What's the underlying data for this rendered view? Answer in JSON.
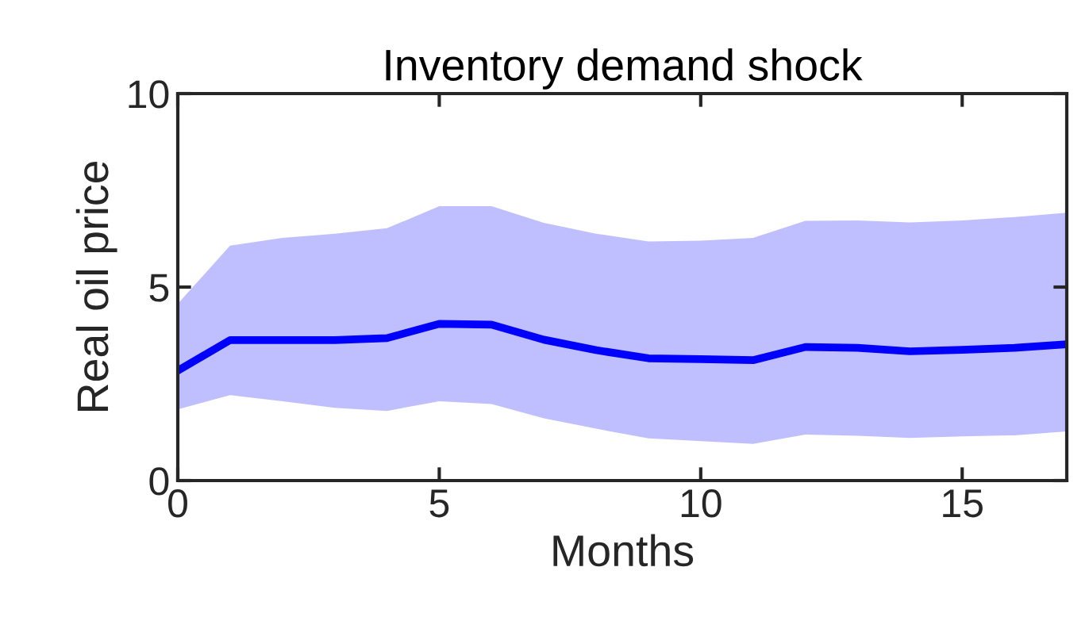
{
  "chart_data": {
    "type": "line",
    "title": "Inventory demand shock",
    "xlabel": "Months",
    "ylabel": "Real oil price",
    "x": [
      0,
      1,
      2,
      3,
      4,
      5,
      6,
      7,
      8,
      9,
      10,
      11,
      12,
      13,
      14,
      15,
      16,
      17
    ],
    "series": [
      {
        "color": "#0000ff",
        "values": [
          2.84,
          3.63,
          3.63,
          3.63,
          3.68,
          4.05,
          4.03,
          3.64,
          3.37,
          3.16,
          3.14,
          3.11,
          3.45,
          3.43,
          3.34,
          3.38,
          3.43,
          3.52
        ],
        "lower": [
          1.84,
          2.21,
          2.05,
          1.88,
          1.8,
          2.05,
          1.98,
          1.61,
          1.34,
          1.09,
          1.02,
          0.95,
          1.19,
          1.16,
          1.1,
          1.14,
          1.17,
          1.27
        ],
        "upper": [
          4.57,
          6.07,
          6.27,
          6.38,
          6.52,
          7.09,
          7.09,
          6.66,
          6.38,
          6.18,
          6.2,
          6.27,
          6.71,
          6.72,
          6.67,
          6.72,
          6.81,
          6.92
        ]
      }
    ],
    "xlim": [
      0,
      17
    ],
    "ylim": [
      0,
      10
    ],
    "xticks": [
      0,
      5,
      10,
      15
    ],
    "yticks": [
      0,
      5,
      10
    ],
    "grid": false,
    "legend": false,
    "marker": "none",
    "line_style": "solid"
  }
}
